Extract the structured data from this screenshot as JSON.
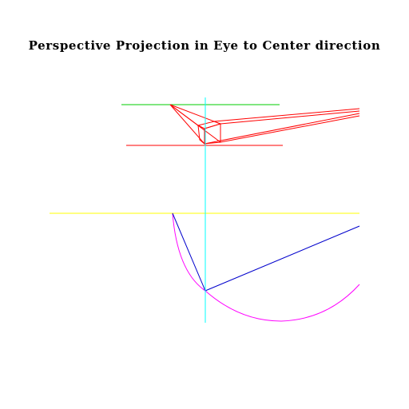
{
  "title": "Perspective Projection in Eye to Center direction",
  "colors": {
    "background": "#ffffff",
    "title": "#000000",
    "horizon_line": "#00cc00",
    "projection_rays": "#ff0000",
    "ground_line": "#ff0000",
    "vertical_axis": "#00ffff",
    "yellow_line": "#ffff00",
    "eye_to_center": "#0000cc",
    "view_arc": "#ff00ff"
  }
}
